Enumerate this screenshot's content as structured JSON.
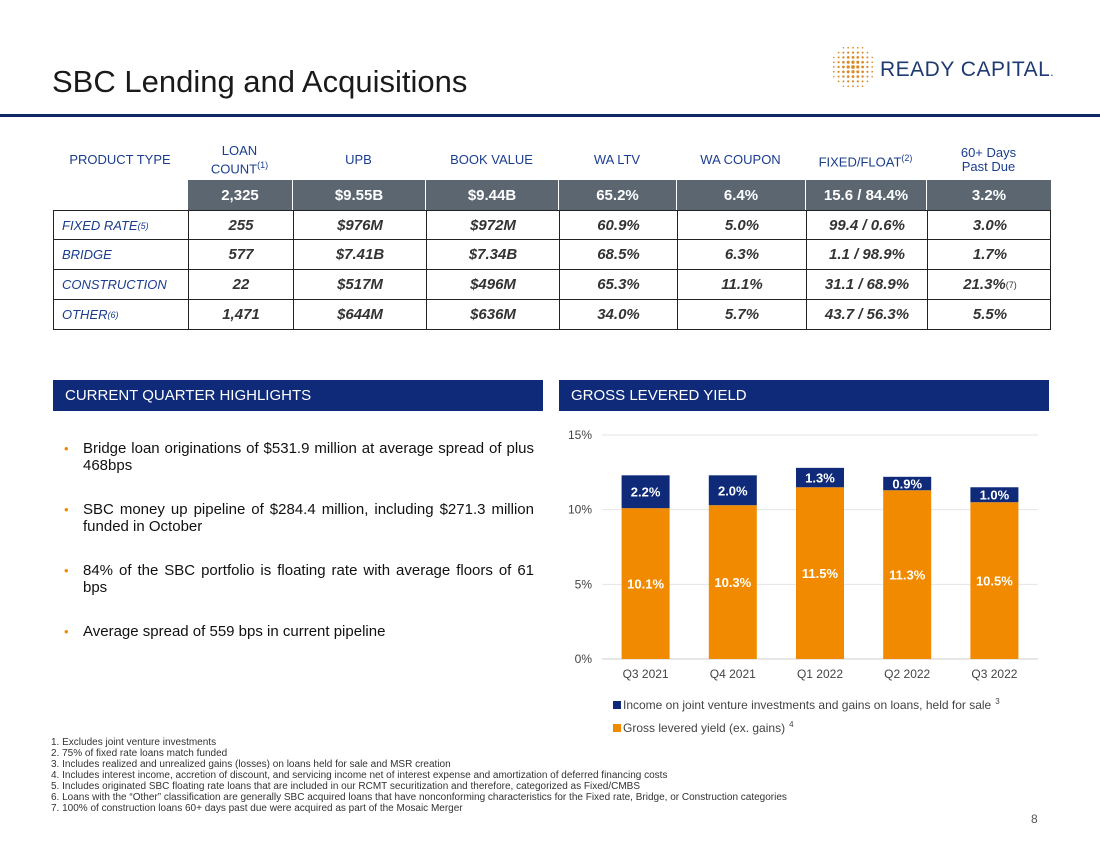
{
  "header": {
    "title": "SBC Lending and Acquisitions",
    "logo_text": "READY CAPITAL",
    "logo_mark": "."
  },
  "table": {
    "columns": [
      {
        "label": "PRODUCT TYPE",
        "sup": ""
      },
      {
        "label": "LOAN COUNT",
        "sup": "(1)"
      },
      {
        "label": "UPB",
        "sup": ""
      },
      {
        "label": "BOOK VALUE",
        "sup": ""
      },
      {
        "label": "WA LTV",
        "sup": ""
      },
      {
        "label": "WA COUPON",
        "sup": ""
      },
      {
        "label": "FIXED/FLOAT",
        "sup": "(2)"
      },
      {
        "label": "60+ Days Past Due",
        "sup": ""
      }
    ],
    "total": [
      "2,325",
      "$9.55B",
      "$9.44B",
      "65.2%",
      "6.4%",
      "15.6 / 84.4%",
      "3.2%"
    ],
    "rows": [
      {
        "name": "FIXED RATE",
        "sup": "(5)",
        "cells": [
          "255",
          "$976M",
          "$972M",
          "60.9%",
          "5.0%",
          "99.4 / 0.6%",
          "3.0%"
        ],
        "last_sup": ""
      },
      {
        "name": "BRIDGE",
        "sup": "",
        "cells": [
          "577",
          "$7.41B",
          "$7.34B",
          "68.5%",
          "6.3%",
          "1.1 / 98.9%",
          "1.7%"
        ],
        "last_sup": ""
      },
      {
        "name": "CONSTRUCTION",
        "sup": "",
        "cells": [
          "22",
          "$517M",
          "$496M",
          "65.3%",
          "11.1%",
          "31.1 / 68.9%",
          "21.3%"
        ],
        "last_sup": "(7)"
      },
      {
        "name": "OTHER",
        "sup": "(6)",
        "cells": [
          "1,471",
          "$644M",
          "$636M",
          "34.0%",
          "5.7%",
          "43.7 / 56.3%",
          "5.5%"
        ],
        "last_sup": ""
      }
    ]
  },
  "highlights": {
    "heading": "CURRENT QUARTER HIGHLIGHTS",
    "items": [
      "Bridge loan originations of $531.9 million at average spread of plus 468bps",
      "SBC money up pipeline of $284.4 million, including $271.3 million funded in October",
      "84% of the SBC portfolio is floating rate with average floors of 61 bps",
      "Average spread of 559 bps in current pipeline"
    ]
  },
  "yield_section": {
    "heading": "GROSS LEVERED YIELD"
  },
  "chart_data": {
    "type": "bar",
    "stacked": true,
    "categories": [
      "Q3 2021",
      "Q4 2021",
      "Q1 2022",
      "Q2 2022",
      "Q3 2022"
    ],
    "series": [
      {
        "name": "Gross levered yield (ex. gains)",
        "sup": "4",
        "color": "#f28a00",
        "values": [
          10.1,
          10.3,
          11.5,
          11.3,
          10.5
        ],
        "labels": [
          "10.1%",
          "10.3%",
          "11.5%",
          "11.3%",
          "10.5%"
        ]
      },
      {
        "name": "Income on joint venture investments and gains on loans, held for sale",
        "sup": "3",
        "color": "#0e2a78",
        "values": [
          2.2,
          2.0,
          1.3,
          0.9,
          1.0
        ],
        "labels": [
          "2.2%",
          "2.0%",
          "1.3%",
          "0.9%",
          "1.0%"
        ]
      }
    ],
    "yticks": [
      "0%",
      "5%",
      "10%",
      "15%"
    ],
    "ylim": [
      0,
      15
    ],
    "grid": true,
    "legend_position": "bottom"
  },
  "footnotes": [
    "1. Excludes joint venture investments",
    "2. 75% of fixed rate loans match funded",
    "3. Includes realized and unrealized gains (losses) on loans held for sale and MSR creation",
    "4. Includes interest income, accretion of discount, and servicing income net of interest expense and amortization of deferred financing costs",
    "5. Includes originated SBC floating rate loans that are included in our RCMT securitization and therefore, categorized as Fixed/CMBS",
    "6. Loans with the “Other” classification are generally SBC acquired loans that have nonconforming characteristics for the Fixed rate, Bridge, or Construction categories",
    "7. 100% of construction loans 60+ days past due were acquired as part of the Mosaic Merger"
  ],
  "page_number": "8"
}
